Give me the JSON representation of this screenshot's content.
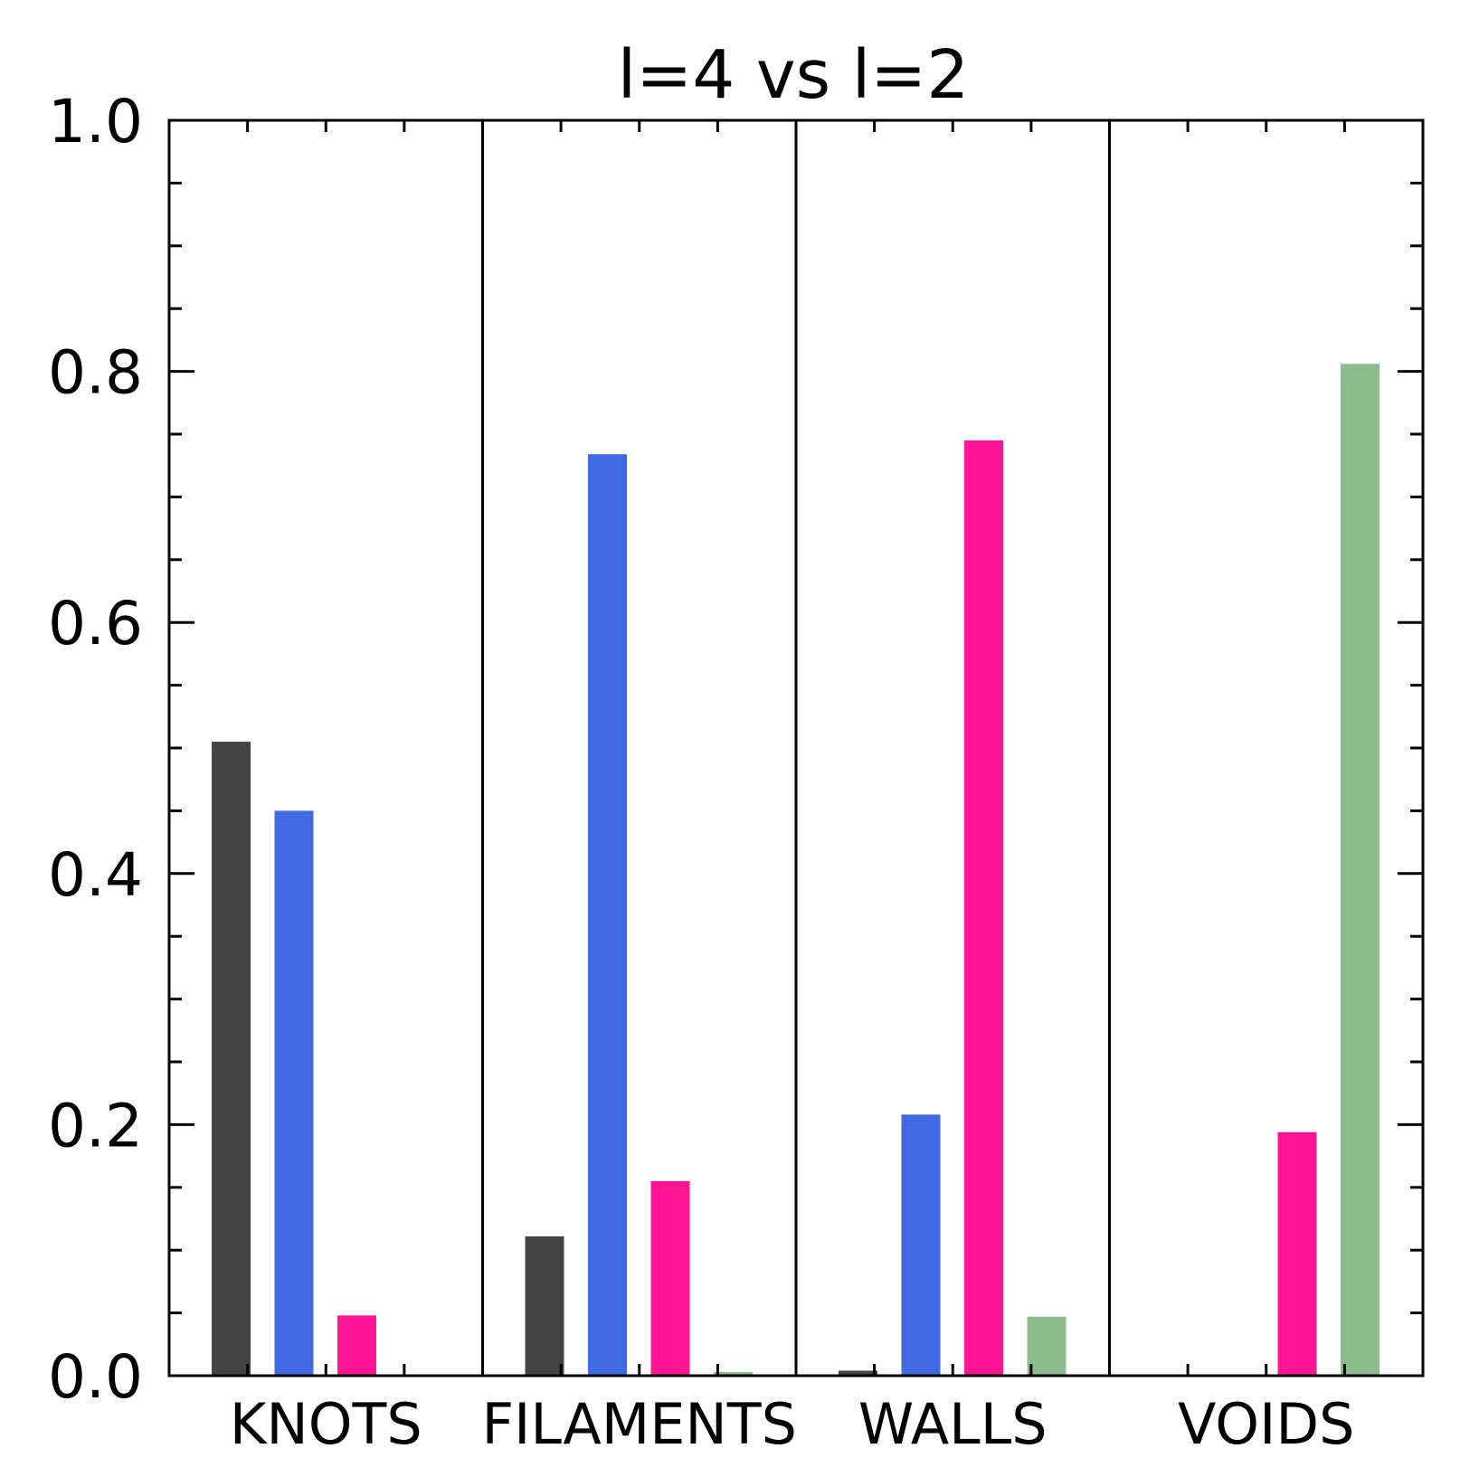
{
  "chart_data": {
    "type": "bar",
    "title": "l=4 vs l=2",
    "xlabel": "",
    "ylabel": "",
    "categories": [
      "KNOTS",
      "FILAMENTS",
      "WALLS",
      "VOIDS"
    ],
    "ylim": [
      0.0,
      1.0
    ],
    "yticks": [
      "0.0",
      "0.2",
      "0.4",
      "0.6",
      "0.8",
      "1.0"
    ],
    "grid": false,
    "series": [
      {
        "color": "#444444",
        "values": [
          0.505,
          0.111,
          0.004,
          0.0
        ]
      },
      {
        "color": "#4169E1",
        "values": [
          0.45,
          0.734,
          0.208,
          0.001
        ]
      },
      {
        "color": "#FF1493",
        "values": [
          0.048,
          0.155,
          0.745,
          0.194
        ]
      },
      {
        "color": "#8FBC8F",
        "values": [
          0.001,
          0.003,
          0.047,
          0.806
        ]
      }
    ]
  }
}
